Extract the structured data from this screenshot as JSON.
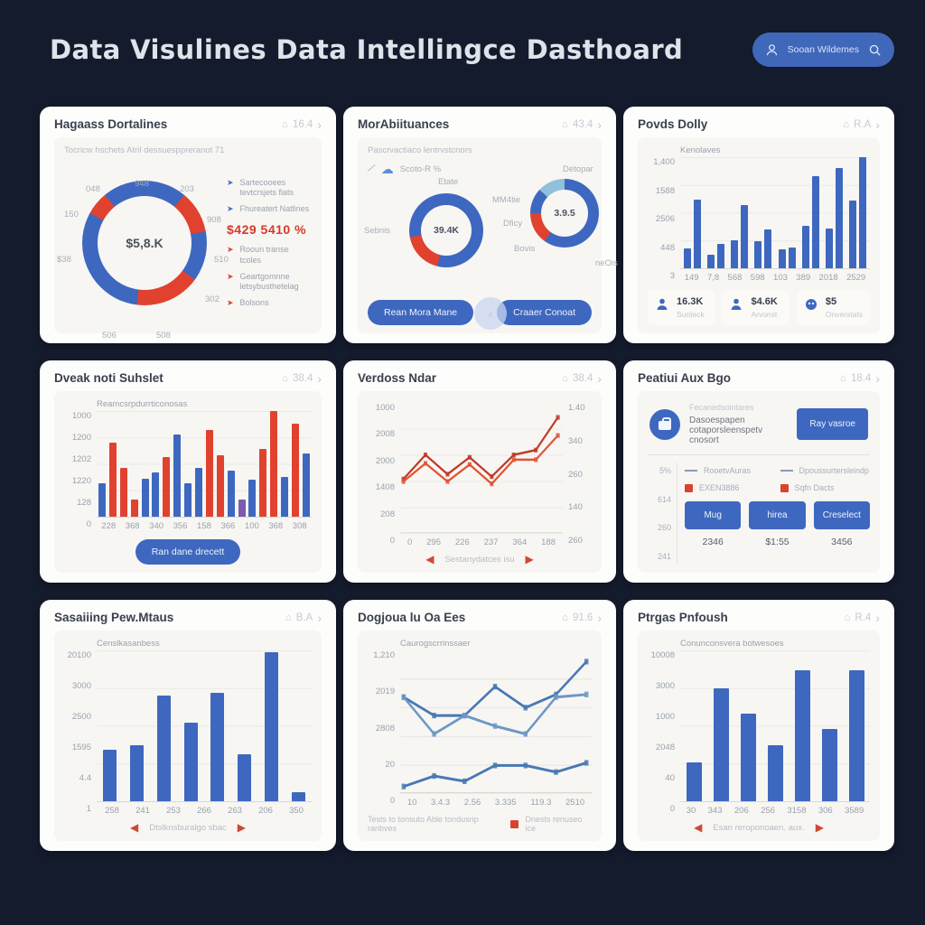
{
  "header": {
    "title": "Data Visulines Data Intellingce Dasthoard",
    "user_label": "Sooan Wildemes"
  },
  "colors": {
    "background": "#141b2d",
    "card": "#fdfdfb",
    "panel": "#f7f6f3",
    "blue": "#3e68bf",
    "red": "#e0422f",
    "purple": "#7c5bb0",
    "lightblue": "#8fc0dc",
    "steel": "#4878b4",
    "dark_red_line": "#c03a28",
    "red_line": "#e05535",
    "accent_text": "#d43a2a"
  },
  "cards": {
    "c1": {
      "title": "Hagaass Dortalines",
      "meta": "16.4",
      "subtitle": "Tocricw hschets Atril dessuesppreranot 71",
      "center": "$5,8.K",
      "highlight": "$429 5410 %",
      "ring_labels": [
        "048",
        "948",
        "203",
        "908",
        "510",
        "302",
        "508",
        "506",
        "$38",
        "150"
      ],
      "legend_blue": [
        "Sartecooees tevtcrsjets fiats",
        "Fhureatert Natlines"
      ],
      "legend_red": [
        "Rooun transe tcoles",
        "Geartgomnne letsybusthetelag",
        "Bolsons"
      ],
      "chart_data": {
        "type": "pie",
        "title": "Hagaass Dortalines",
        "segments": [
          [
            "b",
            11
          ],
          [
            "r",
            11
          ],
          [
            "b",
            13
          ],
          [
            "r",
            17
          ],
          [
            "b",
            31
          ],
          [
            "r",
            6
          ],
          [
            "b",
            11
          ]
        ],
        "center_value": "$5,8.K"
      }
    },
    "c2": {
      "title": "MorAbiituances",
      "meta": "43.4",
      "subtitle": "Pascrvactiaco lentrvstcnors",
      "note": "Scoto-R %",
      "donut_a": {
        "top": "Etate",
        "side": "Sebnis",
        "center": "39.4K"
      },
      "donut_b": {
        "top": "Detopar",
        "l1": "MM4tie",
        "l2": "Dficy",
        "l3": "Bovis",
        "l4": "neOis",
        "center": "3.9.5"
      },
      "button1": "Rean Mora Mane",
      "button2": "Craaer Conoat",
      "chart_data": [
        {
          "type": "pie",
          "title": "Etate",
          "segments": [
            [
              "b",
              54
            ],
            [
              "r",
              18
            ],
            [
              "b",
              28
            ]
          ],
          "center_value": "39.4K"
        },
        {
          "type": "pie",
          "title": "Detopar",
          "segments": [
            [
              "b",
              60
            ],
            [
              "r",
              15
            ],
            [
              "b",
              12
            ],
            [
              "lb",
              13
            ]
          ],
          "center_value": "3.9.5"
        }
      ]
    },
    "c3": {
      "title": "Povds Dolly",
      "meta": "R.A",
      "chart_label": "Kenolaves",
      "stats": [
        {
          "icon": "user-icon",
          "value": "16.3K",
          "label": "Sunteck"
        },
        {
          "icon": "user-icon",
          "value": "$4.6K",
          "label": "Arvonst"
        },
        {
          "icon": "coin-icon",
          "value": "$5",
          "label": "Onverstats"
        }
      ],
      "chart_data": {
        "type": "bar",
        "title": "Kenolaves",
        "categories": [
          "149",
          "7,8",
          "568",
          "598",
          "103",
          "389",
          "2018",
          "2529"
        ],
        "series": [
          {
            "name": "series-a",
            "values": [
              18,
              12,
              25,
              24,
              17,
              38,
              36,
              61
            ]
          },
          {
            "name": "series-b",
            "values": [
              62,
              22,
              57,
              35,
              19,
              83,
              90,
              100
            ]
          }
        ],
        "yticks": [
          "1,400",
          "1588",
          "2506",
          "448",
          "3"
        ],
        "grid": true
      }
    },
    "c4": {
      "title": "Dveak noti Suhslet",
      "meta": "38.4",
      "chart_label": "Reamcsrpdurrticonosas",
      "button": "Ran dane drecett",
      "chart_data": {
        "type": "bar",
        "title": "Reamcsrpdurrticonosas",
        "categories": [
          "228",
          "368",
          "340",
          "356",
          "158",
          "366",
          "100",
          "368",
          "308"
        ],
        "bars": [
          [
            "b",
            32
          ],
          [
            "r",
            70
          ],
          [
            "r",
            46
          ],
          [
            "r",
            16
          ],
          [
            "b",
            36
          ],
          [
            "b",
            42
          ],
          [
            "r",
            56
          ],
          [
            "b",
            78
          ],
          [
            "b",
            32
          ],
          [
            "b",
            46
          ],
          [
            "r",
            82
          ],
          [
            "r",
            58
          ],
          [
            "b",
            44
          ],
          [
            "p",
            16
          ],
          [
            "b",
            35
          ],
          [
            "r",
            64
          ],
          [
            "r",
            100
          ],
          [
            "b",
            38
          ],
          [
            "r",
            88
          ],
          [
            "b",
            60
          ]
        ],
        "yticks": [
          "1000",
          "1200",
          "1202",
          "1220",
          "128",
          "0"
        ],
        "grid": true
      }
    },
    "c5": {
      "title": "Verdoss Ndar",
      "meta": "38.4",
      "footer": "Sestanydatces isu",
      "chart_data": {
        "type": "line",
        "x": [
          "0",
          "295",
          "226",
          "237",
          "364",
          "188"
        ],
        "yticks_left": [
          "1000",
          "2008",
          "2000",
          "1408",
          "208",
          "0"
        ],
        "yticks_right": [
          "1.40",
          "340",
          "260",
          "140",
          "260"
        ],
        "series": [
          {
            "name": "line-dark-red",
            "values": [
              42,
              62,
              46,
              60,
              44,
              62,
              66,
              93
            ]
          },
          {
            "name": "line-red",
            "values": [
              40,
              55,
              40,
              54,
              38,
              58,
              58,
              78
            ]
          }
        ],
        "grid": true
      }
    },
    "c6": {
      "title": "Peatiui Aux Bgo",
      "meta": "18.4",
      "top_label": "Fecanedsointares",
      "top_text": "Dasoespapen cotaporsleenspetv cnosort",
      "top_button": "Ray vasroe",
      "axis": [
        "5%",
        "614",
        "260",
        "241"
      ],
      "legend": [
        {
          "type": "dash",
          "label": "RooetvAuras"
        },
        {
          "type": "dash",
          "label": "Dpoussurtersleindp"
        },
        {
          "type": "square",
          "label": "EXEN3886"
        },
        {
          "type": "square",
          "label": "Sqfn Dacts"
        }
      ],
      "buttons": [
        {
          "label": "Mug",
          "value": "2346"
        },
        {
          "label": "hirea",
          "value": "$1:55"
        },
        {
          "label": "Creselect",
          "value": "3456"
        }
      ]
    },
    "c7": {
      "title": "Sasaiiing Pew.Mtaus",
      "meta": "B.A",
      "chart_label": "Censlkasanbess",
      "footer": "Dtslknsburalgo sbac",
      "chart_data": {
        "type": "bar",
        "title": "Censlkasanbess",
        "categories": [
          "258",
          "241",
          "253",
          "266",
          "263",
          "206",
          "350",
          ""
        ],
        "values": [
          34,
          37,
          70,
          52,
          72,
          31,
          99,
          6
        ],
        "yticks": [
          "20100",
          "3000",
          "2500",
          "1595",
          "4.4",
          "1"
        ],
        "grid": true
      }
    },
    "c8": {
      "title": "Dogjoua lu Oa Ees",
      "meta": "91.6",
      "chart_label": "Caurogscrrinssaer",
      "footer_text": "Tests to tonsuto Able tondusrip ranbves",
      "footer_legend": "Dnests renuseo ice",
      "chart_data": {
        "type": "line",
        "x": [
          "10",
          "3.4.3",
          "2.56",
          "3.335",
          "119.3",
          "2510"
        ],
        "yticks_left": [
          "1,210",
          "2019",
          "2808",
          "20",
          "0"
        ],
        "series": [
          {
            "name": "line-a",
            "values": [
              70,
              56,
              56,
              78,
              62,
              72,
              97
            ]
          },
          {
            "name": "line-b",
            "values": [
              70,
              42,
              56,
              48,
              42,
              70,
              72
            ]
          },
          {
            "name": "line-c",
            "values": [
              2,
              10,
              6,
              18,
              18,
              13,
              20
            ]
          }
        ],
        "grid": true
      }
    },
    "c9": {
      "title": "Ptrgas Pnfoush",
      "meta": "R.4",
      "chart_label": "Conunconsvera botwesoes",
      "footer": "Esan reroponoaen. aux.",
      "chart_data": {
        "type": "bar",
        "title": "Conunconsvera botwesoes",
        "categories": [
          "30",
          "343",
          "206",
          "256",
          "3158",
          "306",
          "3589"
        ],
        "values": [
          26,
          75,
          58,
          37,
          87,
          48,
          87
        ],
        "yticks": [
          "10008",
          "3000",
          "1000",
          "2048",
          "40",
          "0"
        ],
        "grid": true
      }
    }
  }
}
